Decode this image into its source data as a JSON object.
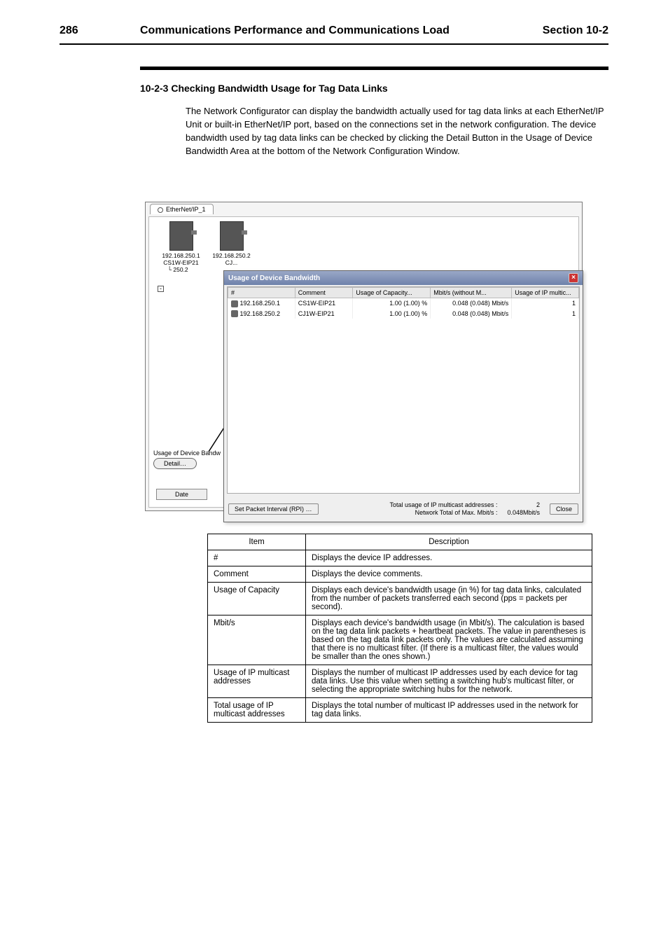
{
  "header": {
    "page_num": "286",
    "left_title": "Communications Performance and Communications Load",
    "right_title": "Section 10-2"
  },
  "section": {
    "sub_heading": "10-2-3 Checking Bandwidth Usage for Tag Data Links",
    "para1": "The Network Configurator can display the bandwidth actually used for tag data links at each EtherNet/IP Unit or built-in EtherNet/IP port, based on the connections set in the network configuration. The device bandwidth used by tag data links can be checked by clicking the Detail Button in the Usage of Device Bandwidth Area at the bottom of the Network Configuration Window.",
    "para2": ""
  },
  "screenshot": {
    "tab_label": "EtherNet/IP_1",
    "devices": [
      {
        "ip": "192.168.250.1",
        "model": "CS1W-EIP21",
        "sub": "250.2"
      },
      {
        "ip": "192.168.250.2",
        "model": "CJ..."
      }
    ],
    "bandwidth_area_label": "Usage of Device Bandw",
    "detail_btn": "Detail…",
    "date_btn": "Date"
  },
  "dialog": {
    "title": "Usage of Device Bandwidth",
    "headers": [
      "#",
      "Comment",
      "Usage of Capacity...",
      "Mbit/s (without M...",
      "Usage of IP multic..."
    ],
    "col_widths": [
      "95px",
      "82px",
      "110px",
      "115px",
      "95px"
    ],
    "rows": [
      {
        "ip": "192.168.250.1",
        "comment": "CS1W-EIP21",
        "cap": "1.00 (1.00) %",
        "mbit": "0.048 (0.048) Mbit/s",
        "multi": "1"
      },
      {
        "ip": "192.168.250.2",
        "comment": "CJ1W-EIP21",
        "cap": "1.00 (1.00) %",
        "mbit": "0.048 (0.048) Mbit/s",
        "multi": "1"
      }
    ],
    "footer": {
      "set_btn": "Set Packet Interval (RPI) …",
      "label1": "Total usage of IP multicast addresses :",
      "val1": "2",
      "label2": "Network Total of Max. Mbit/s :",
      "val2": "0.048Mbit/s",
      "close": "Close"
    }
  },
  "desc_table": {
    "head": [
      "Item",
      "Description"
    ],
    "rows": [
      {
        "item": "#",
        "desc": "Displays the device IP addresses."
      },
      {
        "item": "Comment",
        "desc": "Displays the device comments."
      },
      {
        "item": "Usage of Capacity",
        "desc": "Displays each device's bandwidth usage (in %) for tag data links, calculated from the number of packets transferred each second (pps = packets per second)."
      },
      {
        "item": "Mbit/s",
        "desc": "Displays each device's bandwidth usage (in Mbit/s). The calculation is based on the tag data link packets + heartbeat packets. The value in parentheses is based on the tag data link packets only. The values are calculated assuming that there is no multicast filter. (If there is a multicast filter, the values would be smaller than the ones shown.)"
      },
      {
        "item": "Usage of IP multicast addresses",
        "desc": "Displays the number of multicast IP addresses used by each device for tag data links. Use this value when setting a switching hub's multicast filter, or selecting the appropriate switching hubs for the network."
      },
      {
        "item": "Total usage of IP multicast addresses",
        "desc": "Displays the total number of multicast IP addresses used in the network for tag data links."
      }
    ]
  }
}
